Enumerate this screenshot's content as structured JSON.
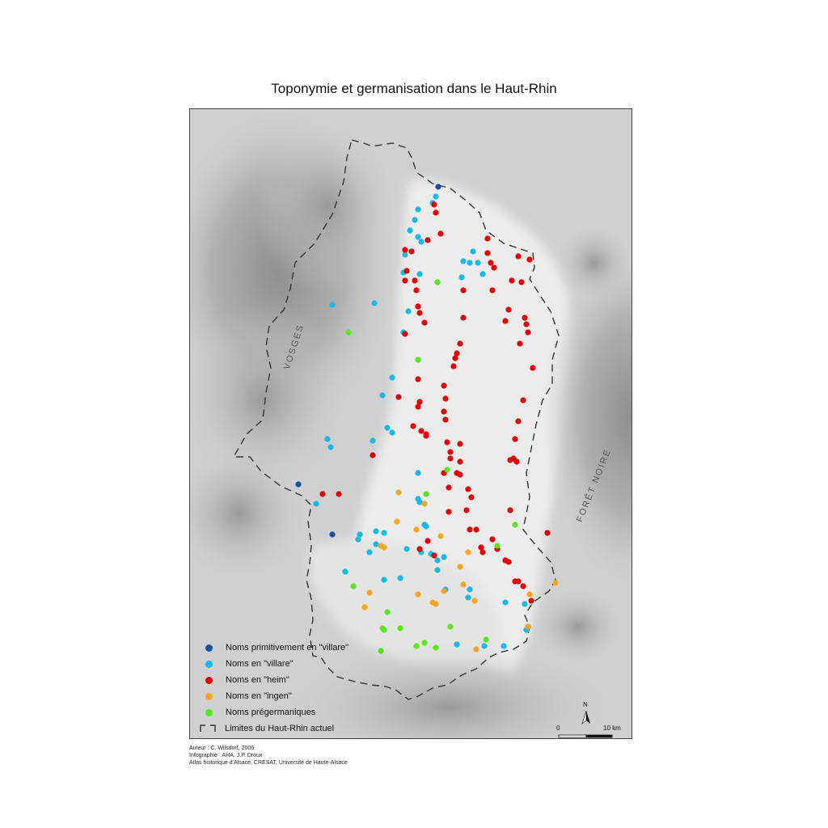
{
  "map": {
    "title": "Toponymie et germanisation dans le Haut-Rhin",
    "region_labels": {
      "vosges": "VOSGES",
      "foret_noire": "FORÊT NOIRE"
    },
    "colors": {
      "villare_primitive": "#1a4fa0",
      "villare": "#1ab8e8",
      "heim": "#e00000",
      "ingen": "#f5a623",
      "pregermanic": "#55e81a",
      "boundary": "#333333"
    },
    "legend": [
      {
        "key": "villare_primitive",
        "label": "Noms primitivement en \"villare\""
      },
      {
        "key": "villare",
        "label": "Noms en \"villare\""
      },
      {
        "key": "heim",
        "label": "Noms en \"heim\""
      },
      {
        "key": "ingen",
        "label": "Noms en \"ingen\""
      },
      {
        "key": "pregermanic",
        "label": "Noms prégermaniques"
      },
      {
        "key": "boundary",
        "label": "Limites du Haut-Rhin actuel"
      }
    ],
    "scale": {
      "start": "0",
      "end": "10 km"
    },
    "north": "N",
    "credits": [
      "Auteur : C. Wilsdorf, 2006",
      "Infographie : AHA, J.P. Droux",
      "Atlas historique d'Alsace, CRESAT, Université de Haute-Alsace"
    ]
  }
}
